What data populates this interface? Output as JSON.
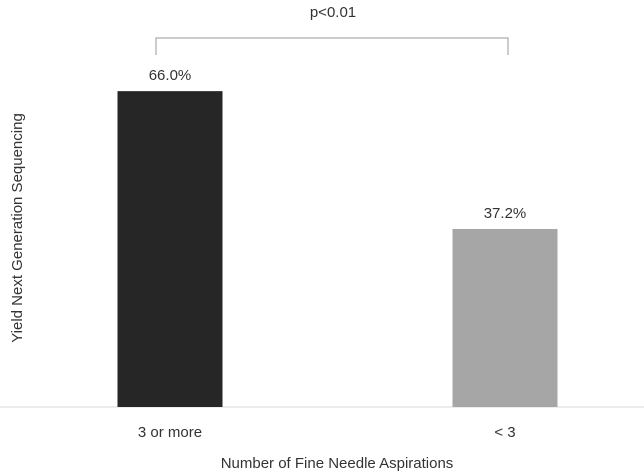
{
  "chart_data": {
    "type": "bar",
    "annotation": "p<0.01",
    "x_label": "Number of Fine Needle Aspirations",
    "y_label": "Yield Next Generation Sequencing",
    "categories": [
      "3 or more",
      "< 3"
    ],
    "values": [
      66.0,
      37.2
    ],
    "value_labels": [
      "66.0%",
      "37.2%"
    ],
    "colors": [
      "#262626",
      "#a6a6a6"
    ],
    "ylim": [
      0,
      70
    ]
  }
}
